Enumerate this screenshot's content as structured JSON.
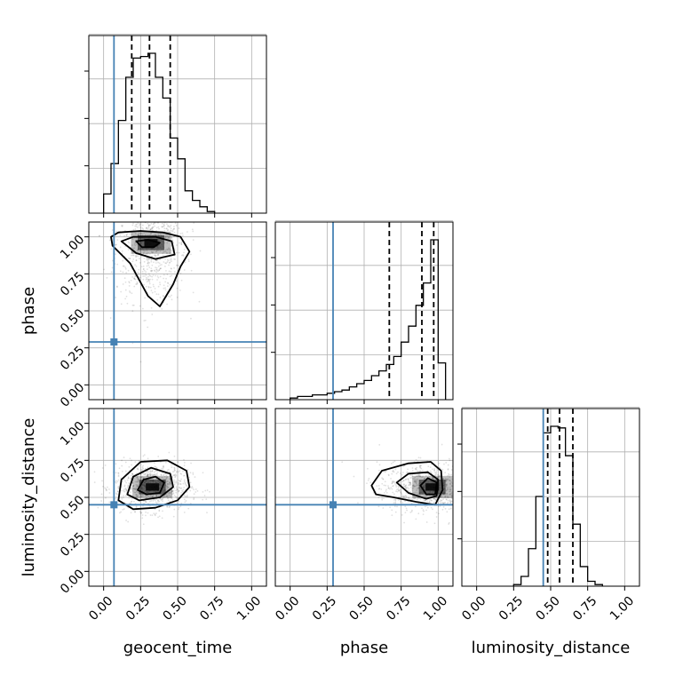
{
  "chart_data": {
    "type": "corner",
    "parameters": [
      "geocent_time",
      "phase",
      "luminosity_distance"
    ],
    "range": [
      -0.1,
      1.1
    ],
    "tick_values": [
      0.0,
      0.25,
      0.5,
      0.75,
      1.0
    ],
    "tick_labels": [
      "0.00",
      "0.25",
      "0.50",
      "0.75",
      "1.00"
    ],
    "grid": true,
    "truth": {
      "geocent_time": 0.07,
      "phase": 0.29,
      "luminosity_distance": 0.45
    },
    "truth_color": "#4682b4",
    "hist_color": "#000000",
    "quantiles": {
      "geocent_time": [
        0.19,
        0.31,
        0.45
      ],
      "phase": [
        0.67,
        0.89,
        0.97
      ],
      "luminosity_distance": [
        0.48,
        0.56,
        0.65
      ]
    },
    "histograms": {
      "geocent_time": {
        "bin_edges": [
          0.0,
          0.05,
          0.1,
          0.15,
          0.2,
          0.25,
          0.3,
          0.35,
          0.4,
          0.45,
          0.5,
          0.55,
          0.6,
          0.65,
          0.7,
          0.75
        ],
        "counts": [
          0.12,
          0.31,
          0.58,
          0.85,
          0.97,
          0.98,
          1.0,
          0.85,
          0.72,
          0.47,
          0.34,
          0.14,
          0.08,
          0.04,
          0.01
        ]
      },
      "phase": {
        "bin_edges": [
          0.0,
          0.05,
          0.1,
          0.15,
          0.2,
          0.25,
          0.3,
          0.35,
          0.4,
          0.45,
          0.5,
          0.55,
          0.6,
          0.65,
          0.7,
          0.75,
          0.8,
          0.85,
          0.9,
          0.95,
          1.0,
          1.05
        ],
        "counts": [
          0.01,
          0.02,
          0.02,
          0.03,
          0.03,
          0.04,
          0.05,
          0.06,
          0.08,
          0.1,
          0.12,
          0.15,
          0.18,
          0.22,
          0.27,
          0.36,
          0.46,
          0.59,
          0.73,
          1.0,
          0.23
        ]
      },
      "luminosity_distance": {
        "bin_edges": [
          0.25,
          0.3,
          0.35,
          0.4,
          0.45,
          0.5,
          0.55,
          0.6,
          0.65,
          0.7,
          0.75,
          0.8,
          0.85
        ],
        "counts": [
          0.01,
          0.06,
          0.23,
          0.55,
          0.94,
          0.98,
          0.97,
          0.8,
          0.38,
          0.12,
          0.03,
          0.01
        ]
      }
    },
    "scatter_panels": [
      {
        "x": "geocent_time",
        "y": "phase",
        "peak": [
          0.32,
          0.96
        ],
        "spread": [
          0.12,
          0.2
        ],
        "contours": [
          [
            [
              0.05,
              1.0
            ],
            [
              0.1,
              1.03
            ],
            [
              0.25,
              1.04
            ],
            [
              0.4,
              1.03
            ],
            [
              0.52,
              1.0
            ],
            [
              0.58,
              0.9
            ],
            [
              0.52,
              0.8
            ],
            [
              0.47,
              0.68
            ],
            [
              0.38,
              0.53
            ],
            [
              0.3,
              0.6
            ],
            [
              0.18,
              0.82
            ],
            [
              0.06,
              0.94
            ]
          ],
          [
            [
              0.12,
              0.97
            ],
            [
              0.2,
              1.0
            ],
            [
              0.35,
              1.0
            ],
            [
              0.46,
              0.97
            ],
            [
              0.48,
              0.88
            ],
            [
              0.35,
              0.85
            ],
            [
              0.22,
              0.89
            ]
          ],
          [
            [
              0.22,
              0.97
            ],
            [
              0.3,
              0.98
            ],
            [
              0.38,
              0.96
            ],
            [
              0.34,
              0.93
            ],
            [
              0.26,
              0.93
            ]
          ]
        ]
      },
      {
        "x": "geocent_time",
        "y": "luminosity_distance",
        "peak": [
          0.33,
          0.57
        ],
        "spread": [
          0.13,
          0.08
        ],
        "contours": [
          [
            [
              0.1,
              0.48
            ],
            [
              0.12,
              0.62
            ],
            [
              0.25,
              0.74
            ],
            [
              0.43,
              0.75
            ],
            [
              0.56,
              0.68
            ],
            [
              0.58,
              0.57
            ],
            [
              0.5,
              0.48
            ],
            [
              0.35,
              0.43
            ],
            [
              0.2,
              0.42
            ]
          ],
          [
            [
              0.16,
              0.52
            ],
            [
              0.2,
              0.64
            ],
            [
              0.32,
              0.7
            ],
            [
              0.45,
              0.66
            ],
            [
              0.47,
              0.57
            ],
            [
              0.38,
              0.5
            ],
            [
              0.24,
              0.48
            ]
          ],
          [
            [
              0.23,
              0.55
            ],
            [
              0.27,
              0.62
            ],
            [
              0.35,
              0.64
            ],
            [
              0.41,
              0.6
            ],
            [
              0.38,
              0.53
            ],
            [
              0.29,
              0.52
            ]
          ]
        ]
      },
      {
        "x": "phase",
        "y": "luminosity_distance",
        "peak": [
          0.96,
          0.57
        ],
        "spread": [
          0.18,
          0.08
        ],
        "contours": [
          [
            [
              0.55,
              0.58
            ],
            [
              0.62,
              0.68
            ],
            [
              0.8,
              0.73
            ],
            [
              0.95,
              0.74
            ],
            [
              1.02,
              0.68
            ],
            [
              1.03,
              0.55
            ],
            [
              0.98,
              0.45
            ],
            [
              0.85,
              0.47
            ],
            [
              0.7,
              0.5
            ],
            [
              0.58,
              0.52
            ]
          ],
          [
            [
              0.72,
              0.6
            ],
            [
              0.8,
              0.66
            ],
            [
              0.93,
              0.67
            ],
            [
              1.0,
              0.62
            ],
            [
              0.99,
              0.51
            ],
            [
              0.92,
              0.49
            ],
            [
              0.8,
              0.53
            ]
          ],
          [
            [
              0.88,
              0.58
            ],
            [
              0.93,
              0.63
            ],
            [
              0.99,
              0.6
            ],
            [
              0.98,
              0.52
            ],
            [
              0.92,
              0.52
            ]
          ]
        ]
      }
    ]
  }
}
